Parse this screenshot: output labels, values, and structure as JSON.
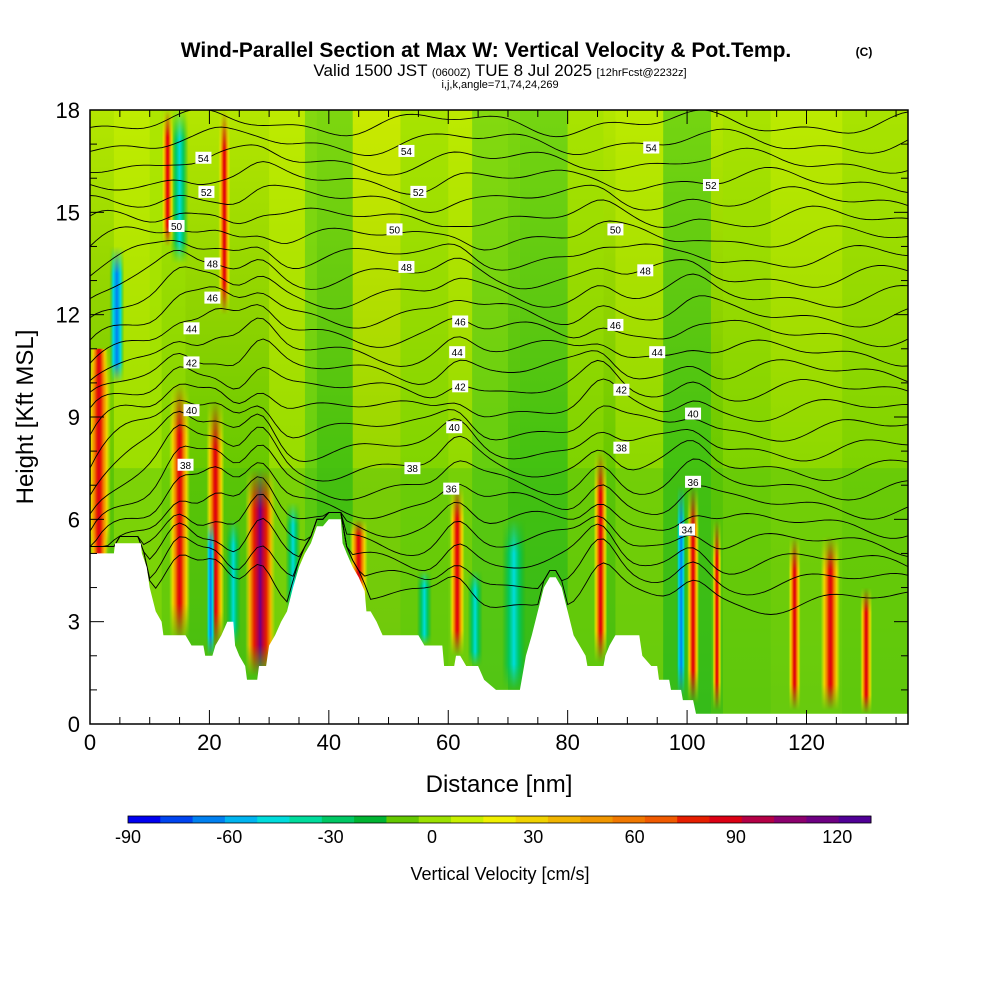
{
  "chart_data": {
    "type": "heatmap",
    "title": "Wind-Parallel Section at Max W: Vertical Velocity & Pot.Temp.",
    "title_mark": "(C)",
    "subtitle_parts": [
      "Valid 1500 JST",
      "(0600Z)",
      "TUE 8 Jul 2025",
      "[12hrFcst@2232z]"
    ],
    "subtitle2": "i,j,k,angle=71,74,24,269",
    "xlabel": "Distance [nm]",
    "ylabel": "Height [Kft MSL]",
    "xlim": [
      0,
      137
    ],
    "ylim": [
      0,
      18
    ],
    "x_ticks": [
      "0",
      "20",
      "40",
      "60",
      "80",
      "100",
      "120"
    ],
    "x_tick_values": [
      0,
      20,
      40,
      60,
      80,
      100,
      120
    ],
    "y_ticks": [
      "0",
      "3",
      "6",
      "9",
      "12",
      "15",
      "18"
    ],
    "y_tick_values": [
      0,
      3,
      6,
      9,
      12,
      15,
      18
    ],
    "colorbar": {
      "label": "Vertical Velocity [cm/s]",
      "min": -90,
      "max": 130,
      "tick_labels": [
        "-90",
        "-60",
        "-30",
        "0",
        "30",
        "60",
        "90",
        "120"
      ],
      "tick_values": [
        -90,
        -60,
        -30,
        0,
        30,
        60,
        90,
        120
      ],
      "colors": [
        "#0000f0",
        "#0044f0",
        "#0080f0",
        "#00b4f0",
        "#00dcdc",
        "#00dc9c",
        "#00c864",
        "#00b432",
        "#64c800",
        "#9ce100",
        "#c8f000",
        "#f0f000",
        "#f0d200",
        "#f0b400",
        "#f09600",
        "#f07800",
        "#f05a00",
        "#e61e00",
        "#dc0014",
        "#b40046",
        "#8c006e",
        "#6e0082",
        "#500096"
      ]
    },
    "theta_labels": [
      {
        "text": "54",
        "x": 19,
        "y": 16.6
      },
      {
        "text": "52",
        "x": 19.5,
        "y": 15.6
      },
      {
        "text": "50",
        "x": 14.5,
        "y": 14.6
      },
      {
        "text": "48",
        "x": 20.5,
        "y": 13.5
      },
      {
        "text": "46",
        "x": 20.5,
        "y": 12.5
      },
      {
        "text": "44",
        "x": 17,
        "y": 11.6
      },
      {
        "text": "42",
        "x": 17,
        "y": 10.6
      },
      {
        "text": "40",
        "x": 17,
        "y": 9.2
      },
      {
        "text": "38",
        "x": 16,
        "y": 7.6
      },
      {
        "text": "54",
        "x": 53,
        "y": 16.8
      },
      {
        "text": "52",
        "x": 55,
        "y": 15.6
      },
      {
        "text": "50",
        "x": 51,
        "y": 14.5
      },
      {
        "text": "48",
        "x": 53,
        "y": 13.4
      },
      {
        "text": "46",
        "x": 62,
        "y": 11.8
      },
      {
        "text": "44",
        "x": 61.5,
        "y": 10.9
      },
      {
        "text": "42",
        "x": 62,
        "y": 9.9
      },
      {
        "text": "40",
        "x": 61,
        "y": 8.7
      },
      {
        "text": "38",
        "x": 54,
        "y": 7.5
      },
      {
        "text": "36",
        "x": 60.5,
        "y": 6.9
      },
      {
        "text": "54",
        "x": 94,
        "y": 16.9
      },
      {
        "text": "52",
        "x": 104,
        "y": 15.8
      },
      {
        "text": "50",
        "x": 88,
        "y": 14.5
      },
      {
        "text": "48",
        "x": 93,
        "y": 13.3
      },
      {
        "text": "46",
        "x": 88,
        "y": 11.7
      },
      {
        "text": "44",
        "x": 95,
        "y": 10.9
      },
      {
        "text": "42",
        "x": 89,
        "y": 9.8
      },
      {
        "text": "40",
        "x": 101,
        "y": 9.1
      },
      {
        "text": "38",
        "x": 89,
        "y": 8.1
      },
      {
        "text": "36",
        "x": 101,
        "y": 7.1
      },
      {
        "text": "34",
        "x": 100,
        "y": 5.7
      }
    ],
    "terrain_height": [
      [
        0,
        5.0
      ],
      [
        2,
        5.0
      ],
      [
        4,
        5.0
      ],
      [
        4.2,
        5.3
      ],
      [
        6,
        5.3
      ],
      [
        8.5,
        5.3
      ],
      [
        8.7,
        5.0
      ],
      [
        9.5,
        4.6
      ],
      [
        10,
        4.0
      ],
      [
        11,
        3.3
      ],
      [
        12,
        3.0
      ],
      [
        12.3,
        2.6
      ],
      [
        16,
        2.6
      ],
      [
        17,
        2.3
      ],
      [
        18,
        2.3
      ],
      [
        19,
        2.3
      ],
      [
        19.3,
        2.0
      ],
      [
        20.5,
        2.0
      ],
      [
        21,
        2.3
      ],
      [
        22,
        2.6
      ],
      [
        23,
        3.0
      ],
      [
        24,
        3.0
      ],
      [
        24.3,
        2.3
      ],
      [
        25,
        2.0
      ],
      [
        26,
        1.7
      ],
      [
        26.3,
        1.3
      ],
      [
        28,
        1.3
      ],
      [
        28.3,
        1.7
      ],
      [
        29.5,
        1.7
      ],
      [
        30,
        2.3
      ],
      [
        31,
        2.6
      ],
      [
        32,
        3.0
      ],
      [
        33,
        3.3
      ],
      [
        34,
        4.0
      ],
      [
        35,
        4.6
      ],
      [
        36,
        5.0
      ],
      [
        37,
        5.3
      ],
      [
        38,
        5.8
      ],
      [
        39,
        5.8
      ],
      [
        40,
        6.0
      ],
      [
        42,
        6.0
      ],
      [
        42.3,
        5.3
      ],
      [
        43,
        5.0
      ],
      [
        44,
        4.6
      ],
      [
        45,
        4.3
      ],
      [
        46,
        3.9
      ],
      [
        46.3,
        3.3
      ],
      [
        47,
        3.3
      ],
      [
        48,
        3.0
      ],
      [
        49,
        2.6
      ],
      [
        55,
        2.6
      ],
      [
        56,
        2.3
      ],
      [
        59,
        2.3
      ],
      [
        59.3,
        1.7
      ],
      [
        61,
        1.7
      ],
      [
        61.3,
        2.0
      ],
      [
        62,
        2.0
      ],
      [
        63,
        1.7
      ],
      [
        65,
        1.7
      ],
      [
        66,
        1.3
      ],
      [
        68,
        1.0
      ],
      [
        72,
        1.0
      ],
      [
        72.3,
        1.3
      ],
      [
        73,
        2.0
      ],
      [
        74,
        2.6
      ],
      [
        75,
        3.3
      ],
      [
        76,
        4.0
      ],
      [
        77,
        4.3
      ],
      [
        78,
        4.3
      ],
      [
        79,
        4.0
      ],
      [
        80,
        3.3
      ],
      [
        81,
        2.6
      ],
      [
        82,
        2.3
      ],
      [
        83,
        2.0
      ],
      [
        83.3,
        1.7
      ],
      [
        86,
        1.7
      ],
      [
        86.3,
        2.0
      ],
      [
        87,
        2.3
      ],
      [
        88,
        2.6
      ],
      [
        92,
        2.6
      ],
      [
        92.5,
        2.0
      ],
      [
        94,
        1.7
      ],
      [
        95,
        1.7
      ],
      [
        95.3,
        1.3
      ],
      [
        97,
        1.3
      ],
      [
        97.3,
        1.0
      ],
      [
        99,
        1.0
      ],
      [
        99.3,
        0.7
      ],
      [
        101,
        0.7
      ],
      [
        101.5,
        0.3
      ],
      [
        107,
        0.3
      ],
      [
        137,
        0.3
      ]
    ]
  }
}
